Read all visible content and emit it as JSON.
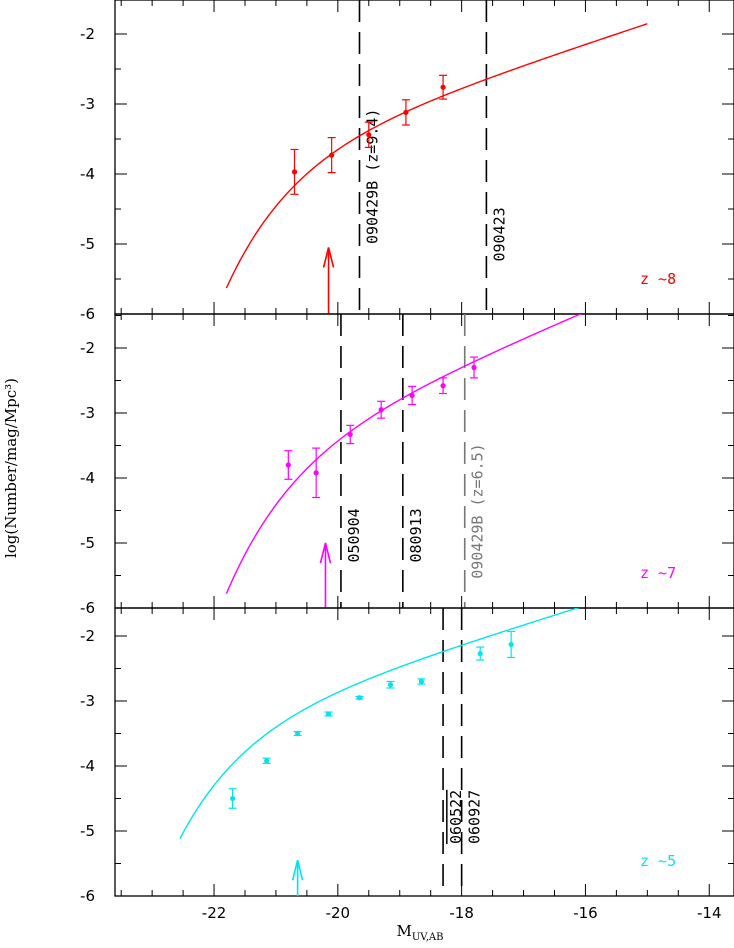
{
  "chart_data": [
    {
      "type": "scatter",
      "panel": "top",
      "color": "#ff0000",
      "redshift_label": "z ~8",
      "xlim": [
        -23.6,
        -13.6
      ],
      "ylim": [
        -6,
        -1.5
      ],
      "y_ticks": [
        "-2",
        "-3",
        "-4",
        "-5",
        "-6"
      ],
      "points": [
        {
          "x": -20.7,
          "y": -3.97,
          "err": 0.32
        },
        {
          "x": -20.1,
          "y": -3.73,
          "err": 0.25
        },
        {
          "x": -19.5,
          "y": -3.44,
          "err": 0.18
        },
        {
          "x": -18.9,
          "y": -3.12,
          "err": 0.18
        },
        {
          "x": -18.3,
          "y": -2.76,
          "err": 0.17
        }
      ],
      "fit_curve": {
        "mstar": -20.26,
        "logphi": -3.35,
        "alpha": -1.73,
        "x_range": [
          -21.8,
          -15.0
        ]
      },
      "limit_arrow": {
        "x": -20.15,
        "y_from": -6.0,
        "y_to": -5.05
      },
      "grb_lines": [
        {
          "x": -19.65,
          "label": "090429B (z=9.4)",
          "label_y": -5.0,
          "color": "#000000"
        },
        {
          "x": -17.6,
          "label": "090423",
          "label_y": -5.25,
          "color": "#000000"
        }
      ]
    },
    {
      "type": "scatter",
      "panel": "middle",
      "color": "#ff00ff",
      "redshift_label": "z ~7",
      "xlim": [
        -23.6,
        -13.6
      ],
      "ylim": [
        -6,
        -1.5
      ],
      "y_ticks": [
        "-2",
        "-3",
        "-4",
        "-5",
        "-6"
      ],
      "points": [
        {
          "x": -20.8,
          "y": -3.8,
          "err": 0.22
        },
        {
          "x": -20.35,
          "y": -3.92,
          "err": 0.38
        },
        {
          "x": -19.8,
          "y": -3.33,
          "err": 0.14
        },
        {
          "x": -19.3,
          "y": -2.95,
          "err": 0.13
        },
        {
          "x": -18.8,
          "y": -2.73,
          "err": 0.14
        },
        {
          "x": -18.3,
          "y": -2.58,
          "err": 0.12
        },
        {
          "x": -17.8,
          "y": -2.3,
          "err": 0.16
        }
      ],
      "fit_curve": {
        "mstar": -20.14,
        "logphi": -3.07,
        "alpha": -2.01,
        "x_range": [
          -21.8,
          -15.8
        ]
      },
      "limit_arrow": {
        "x": -20.2,
        "y_from": -6.0,
        "y_to": -5.0
      },
      "grb_lines": [
        {
          "x": -19.95,
          "label": "050904",
          "label_y": -5.3,
          "color": "#000000"
        },
        {
          "x": -18.95,
          "label": "080913",
          "label_y": -5.3,
          "color": "#000000"
        },
        {
          "x": -17.95,
          "label": "090429B (z=6.5)",
          "label_y": -5.55,
          "color": "#777777"
        }
      ]
    },
    {
      "type": "scatter",
      "panel": "bottom",
      "color": "#00e5ee",
      "redshift_label": "z ~5",
      "xlim": [
        -23.6,
        -13.6
      ],
      "ylim": [
        -6,
        -1.5
      ],
      "y_ticks": [
        "-2",
        "-3",
        "-4",
        "-5",
        "-6"
      ],
      "points": [
        {
          "x": -21.7,
          "y": -4.5,
          "err": 0.15
        },
        {
          "x": -21.15,
          "y": -3.92,
          "err": 0.04
        },
        {
          "x": -20.65,
          "y": -3.5,
          "err": 0.03
        },
        {
          "x": -20.15,
          "y": -3.2,
          "err": 0.03
        },
        {
          "x": -19.65,
          "y": -2.95,
          "err": 0.02
        },
        {
          "x": -19.15,
          "y": -2.75,
          "err": 0.05
        },
        {
          "x": -18.65,
          "y": -2.7,
          "err": 0.04
        },
        {
          "x": -17.7,
          "y": -2.27,
          "err": 0.1
        },
        {
          "x": -17.2,
          "y": -2.13,
          "err": 0.2
        }
      ],
      "fit_curve": {
        "mstar": -21.1,
        "logphi": -3.0,
        "alpha": -1.74,
        "x_range": [
          -22.55,
          -16.0
        ]
      },
      "limit_arrow": {
        "x": -20.65,
        "y_from": -6.0,
        "y_to": -5.45
      },
      "grb_lines": [
        {
          "x": -18.3,
          "label": "060522",
          "label_y": -5.2,
          "color": "#000000",
          "overline": true
        },
        {
          "x": -18.0,
          "label": "060927",
          "label_y": -5.2,
          "color": "#000000"
        }
      ]
    }
  ],
  "x_ticks": [
    "-22",
    "-20",
    "-18",
    "-16",
    "-14"
  ],
  "xlabel_main": "M",
  "xlabel_sub": "UV,AB",
  "ylabel": "log(Number/mag/Mpc³)"
}
